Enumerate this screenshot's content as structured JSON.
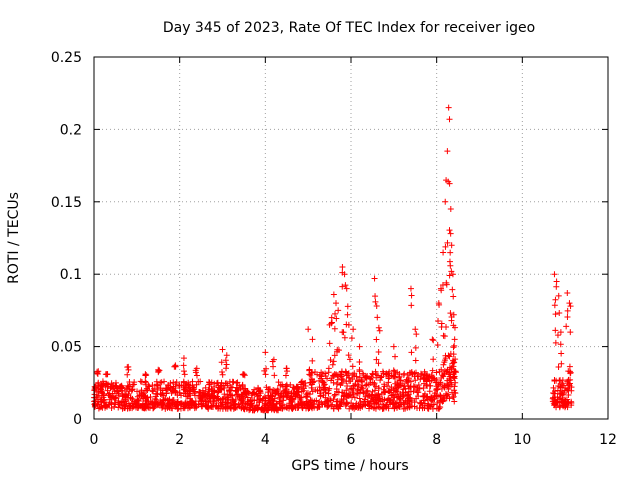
{
  "chart_data": {
    "type": "scatter",
    "title": "Day 345 of 2023, Rate Of TEC Index for receiver igeo",
    "xlabel": "GPS time / hours",
    "ylabel": "ROTI / TECUs",
    "xlim": [
      0,
      12
    ],
    "ylim": [
      0,
      0.25
    ],
    "xticks": [
      "0",
      "2",
      "4",
      "6",
      "8",
      "10",
      "12"
    ],
    "yticks": [
      "0",
      "0.05",
      "0.1",
      "0.15",
      "0.2",
      "0.25"
    ],
    "grid": true,
    "marker": "+",
    "series": [
      {
        "color": "#ff0000",
        "coverage_hours": [
          [
            0.0,
            8.45
          ],
          [
            10.7,
            11.15
          ]
        ],
        "points": [
          [
            0.1,
            0.033
          ],
          [
            0.3,
            0.031
          ],
          [
            0.8,
            0.036
          ],
          [
            1.2,
            0.031
          ],
          [
            1.5,
            0.034
          ],
          [
            1.9,
            0.037
          ],
          [
            2.1,
            0.042
          ],
          [
            2.4,
            0.035
          ],
          [
            3.0,
            0.048
          ],
          [
            3.1,
            0.044
          ],
          [
            3.5,
            0.031
          ],
          [
            4.0,
            0.046
          ],
          [
            4.2,
            0.041
          ],
          [
            4.5,
            0.035
          ],
          [
            5.0,
            0.062
          ],
          [
            5.1,
            0.055
          ],
          [
            5.5,
            0.065
          ],
          [
            5.55,
            0.07
          ],
          [
            5.6,
            0.086
          ],
          [
            5.65,
            0.08
          ],
          [
            5.7,
            0.075
          ],
          [
            5.8,
            0.105
          ],
          [
            5.85,
            0.1
          ],
          [
            5.9,
            0.09
          ],
          [
            5.95,
            0.065
          ],
          [
            6.05,
            0.062
          ],
          [
            6.2,
            0.05
          ],
          [
            6.55,
            0.097
          ],
          [
            6.6,
            0.078
          ],
          [
            6.65,
            0.063
          ],
          [
            7.0,
            0.05
          ],
          [
            7.4,
            0.09
          ],
          [
            7.5,
            0.062
          ],
          [
            7.9,
            0.055
          ],
          [
            8.05,
            0.08
          ],
          [
            8.1,
            0.09
          ],
          [
            8.15,
            0.115
          ],
          [
            8.2,
            0.15
          ],
          [
            8.22,
            0.165
          ],
          [
            8.25,
            0.185
          ],
          [
            8.28,
            0.215
          ],
          [
            8.3,
            0.207
          ],
          [
            8.33,
            0.145
          ],
          [
            8.35,
            0.12
          ],
          [
            8.38,
            0.1
          ],
          [
            8.4,
            0.072
          ],
          [
            8.42,
            0.055
          ],
          [
            10.75,
            0.1
          ],
          [
            10.8,
            0.095
          ],
          [
            10.85,
            0.085
          ],
          [
            10.9,
            0.06
          ],
          [
            11.05,
            0.087
          ],
          [
            11.1,
            0.08
          ],
          [
            11.12,
            0.06
          ]
        ]
      }
    ]
  }
}
